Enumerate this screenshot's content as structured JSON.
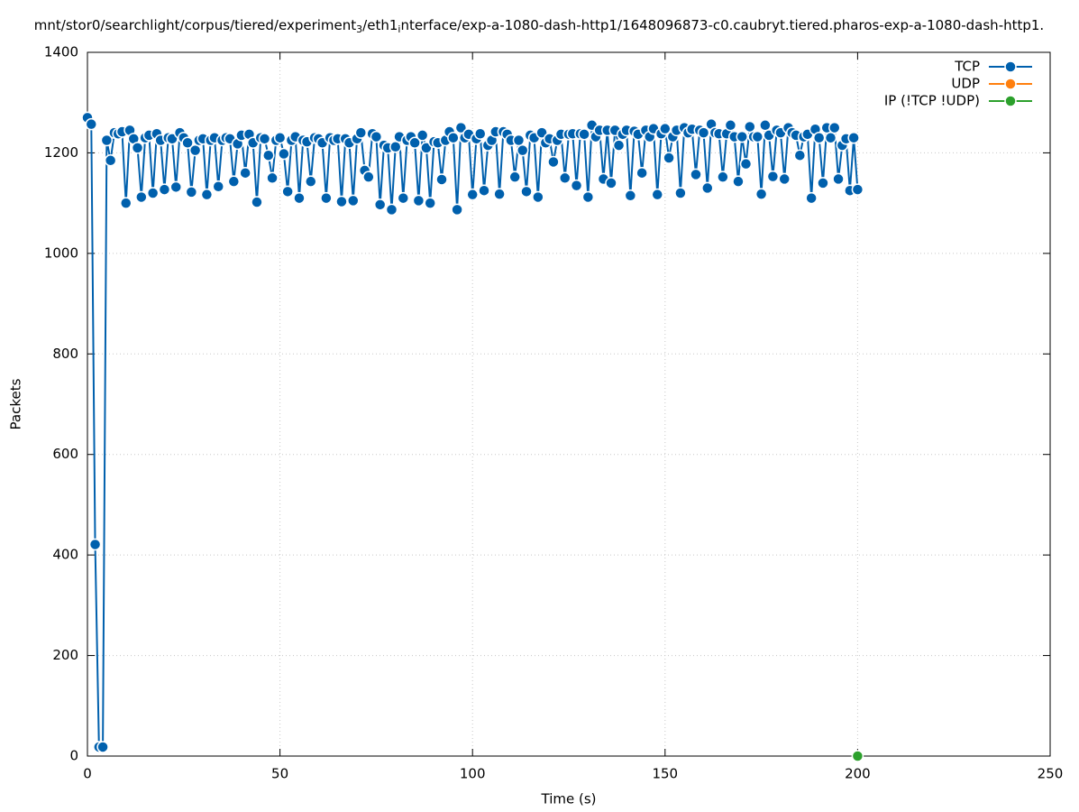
{
  "chart_data": {
    "type": "line",
    "title": [
      "mnt/stor0/searchlight/corpus/tiered/experiment",
      "3",
      "/eth1",
      "i",
      "nterface/exp-a-1080-dash-http1/1648096873-c0.caubryt.tiered.pharos-exp-a-1080-dash-http1."
    ],
    "x_label": "Time (s)",
    "y_label": "Packets",
    "xlim": [
      0,
      250
    ],
    "ylim": [
      0,
      1400
    ],
    "xticks": [
      0,
      50,
      100,
      150,
      200,
      250
    ],
    "yticks": [
      0,
      200,
      400,
      600,
      800,
      1000,
      1200,
      1400
    ],
    "grid": true,
    "legend": "top-right",
    "series": [
      {
        "name": "TCP",
        "color": "#0060ad",
        "x": [
          0,
          1,
          2,
          3,
          4,
          5,
          6,
          7,
          8,
          9,
          10,
          11,
          12,
          13,
          14,
          15,
          16,
          17,
          18,
          19,
          20,
          21,
          22,
          23,
          24,
          25,
          26,
          27,
          28,
          29,
          30,
          31,
          32,
          33,
          34,
          35,
          36,
          37,
          38,
          39,
          40,
          41,
          42,
          43,
          44,
          45,
          46,
          47,
          48,
          49,
          50,
          51,
          52,
          53,
          54,
          55,
          56,
          57,
          58,
          59,
          60,
          61,
          62,
          63,
          64,
          65,
          66,
          67,
          68,
          69,
          70,
          71,
          72,
          73,
          74,
          75,
          76,
          77,
          78,
          79,
          80,
          81,
          82,
          83,
          84,
          85,
          86,
          87,
          88,
          89,
          90,
          91,
          92,
          93,
          94,
          95,
          96,
          97,
          98,
          99,
          100,
          101,
          102,
          103,
          104,
          105,
          106,
          107,
          108,
          109,
          110,
          111,
          112,
          113,
          114,
          115,
          116,
          117,
          118,
          119,
          120,
          121,
          122,
          123,
          124,
          125,
          126,
          127,
          128,
          129,
          130,
          131,
          132,
          133,
          134,
          135,
          136,
          137,
          138,
          139,
          140,
          141,
          142,
          143,
          144,
          145,
          146,
          147,
          148,
          149,
          150,
          151,
          152,
          153,
          154,
          155,
          156,
          157,
          158,
          159,
          160,
          161,
          162,
          163,
          164,
          165,
          166,
          167,
          168,
          169,
          170,
          171,
          172,
          173,
          174,
          175,
          176,
          177,
          178,
          179,
          180,
          181,
          182,
          183,
          184,
          185,
          186,
          187,
          188,
          189,
          190,
          191,
          192,
          193,
          194,
          195,
          196,
          197,
          198,
          199,
          200
        ],
        "values": [
          1270,
          1257,
          421,
          18,
          18,
          1225,
          1185,
          1240,
          1238,
          1242,
          1100,
          1245,
          1228,
          1210,
          1112,
          1230,
          1235,
          1120,
          1238,
          1225,
          1127,
          1230,
          1228,
          1132,
          1240,
          1230,
          1220,
          1122,
          1205,
          1225,
          1228,
          1117,
          1225,
          1230,
          1133,
          1225,
          1230,
          1228,
          1143,
          1218,
          1235,
          1160,
          1237,
          1220,
          1102,
          1230,
          1228,
          1195,
          1150,
          1225,
          1230,
          1198,
          1123,
          1225,
          1232,
          1110,
          1225,
          1222,
          1143,
          1230,
          1228,
          1220,
          1110,
          1230,
          1225,
          1228,
          1103,
          1228,
          1220,
          1105,
          1228,
          1240,
          1165,
          1152,
          1238,
          1232,
          1097,
          1215,
          1210,
          1087,
          1212,
          1232,
          1110,
          1225,
          1232,
          1220,
          1105,
          1235,
          1210,
          1100,
          1222,
          1220,
          1147,
          1225,
          1242,
          1230,
          1087,
          1250,
          1230,
          1237,
          1117,
          1228,
          1238,
          1125,
          1215,
          1225,
          1242,
          1118,
          1242,
          1237,
          1225,
          1152,
          1225,
          1205,
          1123,
          1235,
          1230,
          1112,
          1240,
          1220,
          1228,
          1182,
          1225,
          1237,
          1150,
          1237,
          1238,
          1135,
          1238,
          1237,
          1112,
          1255,
          1232,
          1245,
          1148,
          1245,
          1140,
          1245,
          1215,
          1237,
          1245,
          1115,
          1243,
          1237,
          1160,
          1245,
          1232,
          1248,
          1117,
          1238,
          1248,
          1190,
          1232,
          1245,
          1120,
          1250,
          1240,
          1247,
          1157,
          1245,
          1240,
          1130,
          1257,
          1240,
          1238,
          1152,
          1238,
          1255,
          1232,
          1143,
          1232,
          1178,
          1252,
          1232,
          1232,
          1118,
          1255,
          1235,
          1153,
          1245,
          1240,
          1148,
          1250,
          1240,
          1235,
          1195,
          1232,
          1237,
          1110,
          1247,
          1230,
          1140,
          1250,
          1230,
          1250,
          1148,
          1215,
          1228,
          1125,
          1230,
          1127
        ]
      },
      {
        "name": "UDP",
        "color": "#ff7f0e",
        "x": [],
        "values": []
      },
      {
        "name": "IP (!TCP  !UDP)",
        "color": "#2ca02c",
        "x": [
          200
        ],
        "values": [
          0
        ]
      }
    ]
  }
}
